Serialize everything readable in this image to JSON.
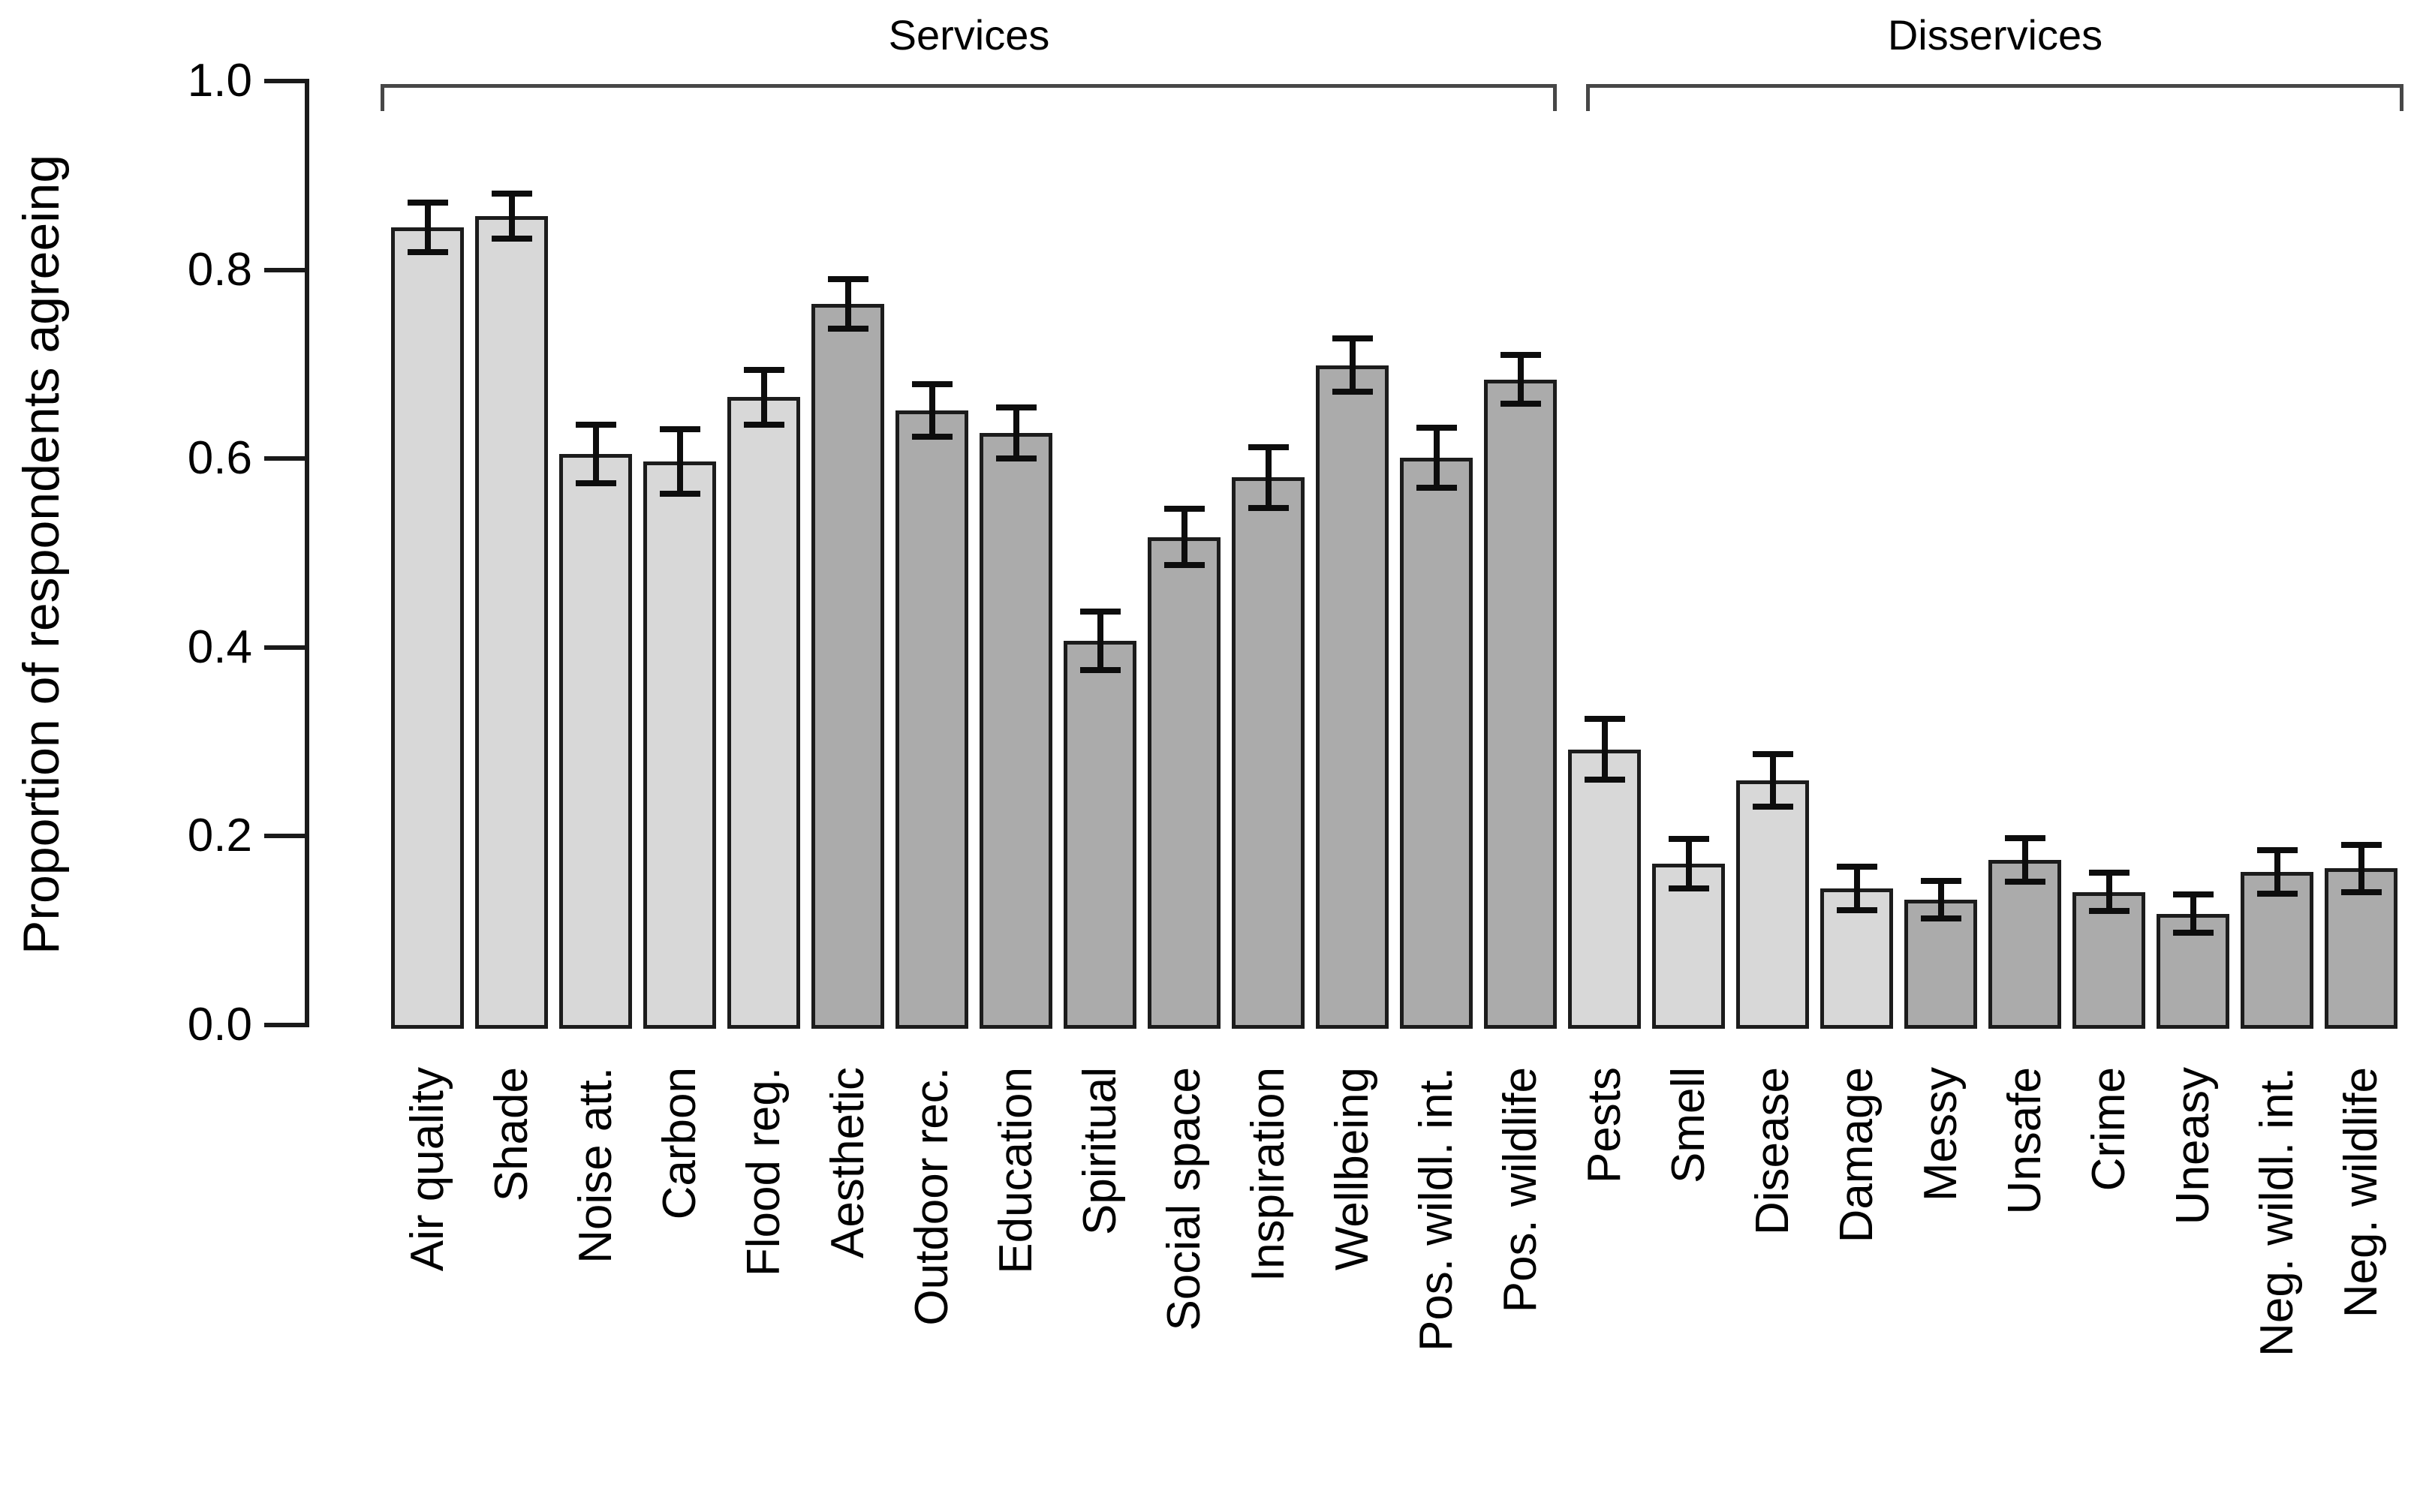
{
  "chart_data": {
    "type": "bar",
    "title": "",
    "ylabel": "Proportion of respondents agreeing",
    "xlabel": "",
    "ylim": [
      0.0,
      1.0
    ],
    "yticks": [
      "0.0",
      "0.2",
      "0.4",
      "0.6",
      "0.8",
      "1.0"
    ],
    "grid": "off",
    "legend": "none",
    "error_bars": true,
    "groups": [
      {
        "label": "Services",
        "start_index": 0,
        "end_index": 13
      },
      {
        "label": "Disservices",
        "start_index": 14,
        "end_index": 23
      }
    ],
    "bars": [
      {
        "label": "Air quality",
        "value": 0.845,
        "error": 0.026,
        "tone": "light",
        "group": "Services"
      },
      {
        "label": "Shade",
        "value": 0.857,
        "error": 0.024,
        "tone": "light",
        "group": "Services"
      },
      {
        "label": "Noise att.",
        "value": 0.605,
        "error": 0.031,
        "tone": "light",
        "group": "Services"
      },
      {
        "label": "Carbon",
        "value": 0.597,
        "error": 0.034,
        "tone": "light",
        "group": "Services"
      },
      {
        "label": "Flood reg.",
        "value": 0.665,
        "error": 0.029,
        "tone": "light",
        "group": "Services"
      },
      {
        "label": "Aesthetic",
        "value": 0.764,
        "error": 0.026,
        "tone": "dark",
        "group": "Services"
      },
      {
        "label": "Outdoor rec.",
        "value": 0.651,
        "error": 0.028,
        "tone": "dark",
        "group": "Services"
      },
      {
        "label": "Education",
        "value": 0.627,
        "error": 0.027,
        "tone": "dark",
        "group": "Services"
      },
      {
        "label": "Spiritual",
        "value": 0.407,
        "error": 0.031,
        "tone": "dark",
        "group": "Services"
      },
      {
        "label": "Social space",
        "value": 0.517,
        "error": 0.03,
        "tone": "dark",
        "group": "Services"
      },
      {
        "label": "Inspiration",
        "value": 0.58,
        "error": 0.032,
        "tone": "dark",
        "group": "Services"
      },
      {
        "label": "Wellbeing",
        "value": 0.699,
        "error": 0.028,
        "tone": "dark",
        "group": "Services"
      },
      {
        "label": "Pos. wildl. int.",
        "value": 0.601,
        "error": 0.032,
        "tone": "dark",
        "group": "Services"
      },
      {
        "label": "Pos. wildlife",
        "value": 0.684,
        "error": 0.026,
        "tone": "dark",
        "group": "Services"
      },
      {
        "label": "Pests",
        "value": 0.292,
        "error": 0.032,
        "tone": "light",
        "group": "Disservices"
      },
      {
        "label": "Smell",
        "value": 0.171,
        "error": 0.026,
        "tone": "light",
        "group": "Disservices"
      },
      {
        "label": "Disease",
        "value": 0.259,
        "error": 0.028,
        "tone": "light",
        "group": "Disservices"
      },
      {
        "label": "Damage",
        "value": 0.145,
        "error": 0.023,
        "tone": "light",
        "group": "Disservices"
      },
      {
        "label": "Messy",
        "value": 0.133,
        "error": 0.02,
        "tone": "dark",
        "group": "Disservices"
      },
      {
        "label": "Unsafe",
        "value": 0.175,
        "error": 0.023,
        "tone": "dark",
        "group": "Disservices"
      },
      {
        "label": "Crime",
        "value": 0.141,
        "error": 0.02,
        "tone": "dark",
        "group": "Disservices"
      },
      {
        "label": "Uneasy",
        "value": 0.118,
        "error": 0.02,
        "tone": "dark",
        "group": "Disservices"
      },
      {
        "label": "Neg. wildl. int.",
        "value": 0.162,
        "error": 0.023,
        "tone": "dark",
        "group": "Disservices"
      },
      {
        "label": "Neg. wildlife",
        "value": 0.166,
        "error": 0.025,
        "tone": "dark",
        "group": "Disservices"
      }
    ],
    "colors": {
      "bar_fill_light": "#d8d8d8",
      "bar_fill_dark": "#ababab",
      "bar_border": "#1c1c1c",
      "error_bar": "#0d0d0d",
      "axis": "#1a1a1a",
      "bracket": "#474747",
      "text": "#000000",
      "background": "#ffffff"
    }
  }
}
